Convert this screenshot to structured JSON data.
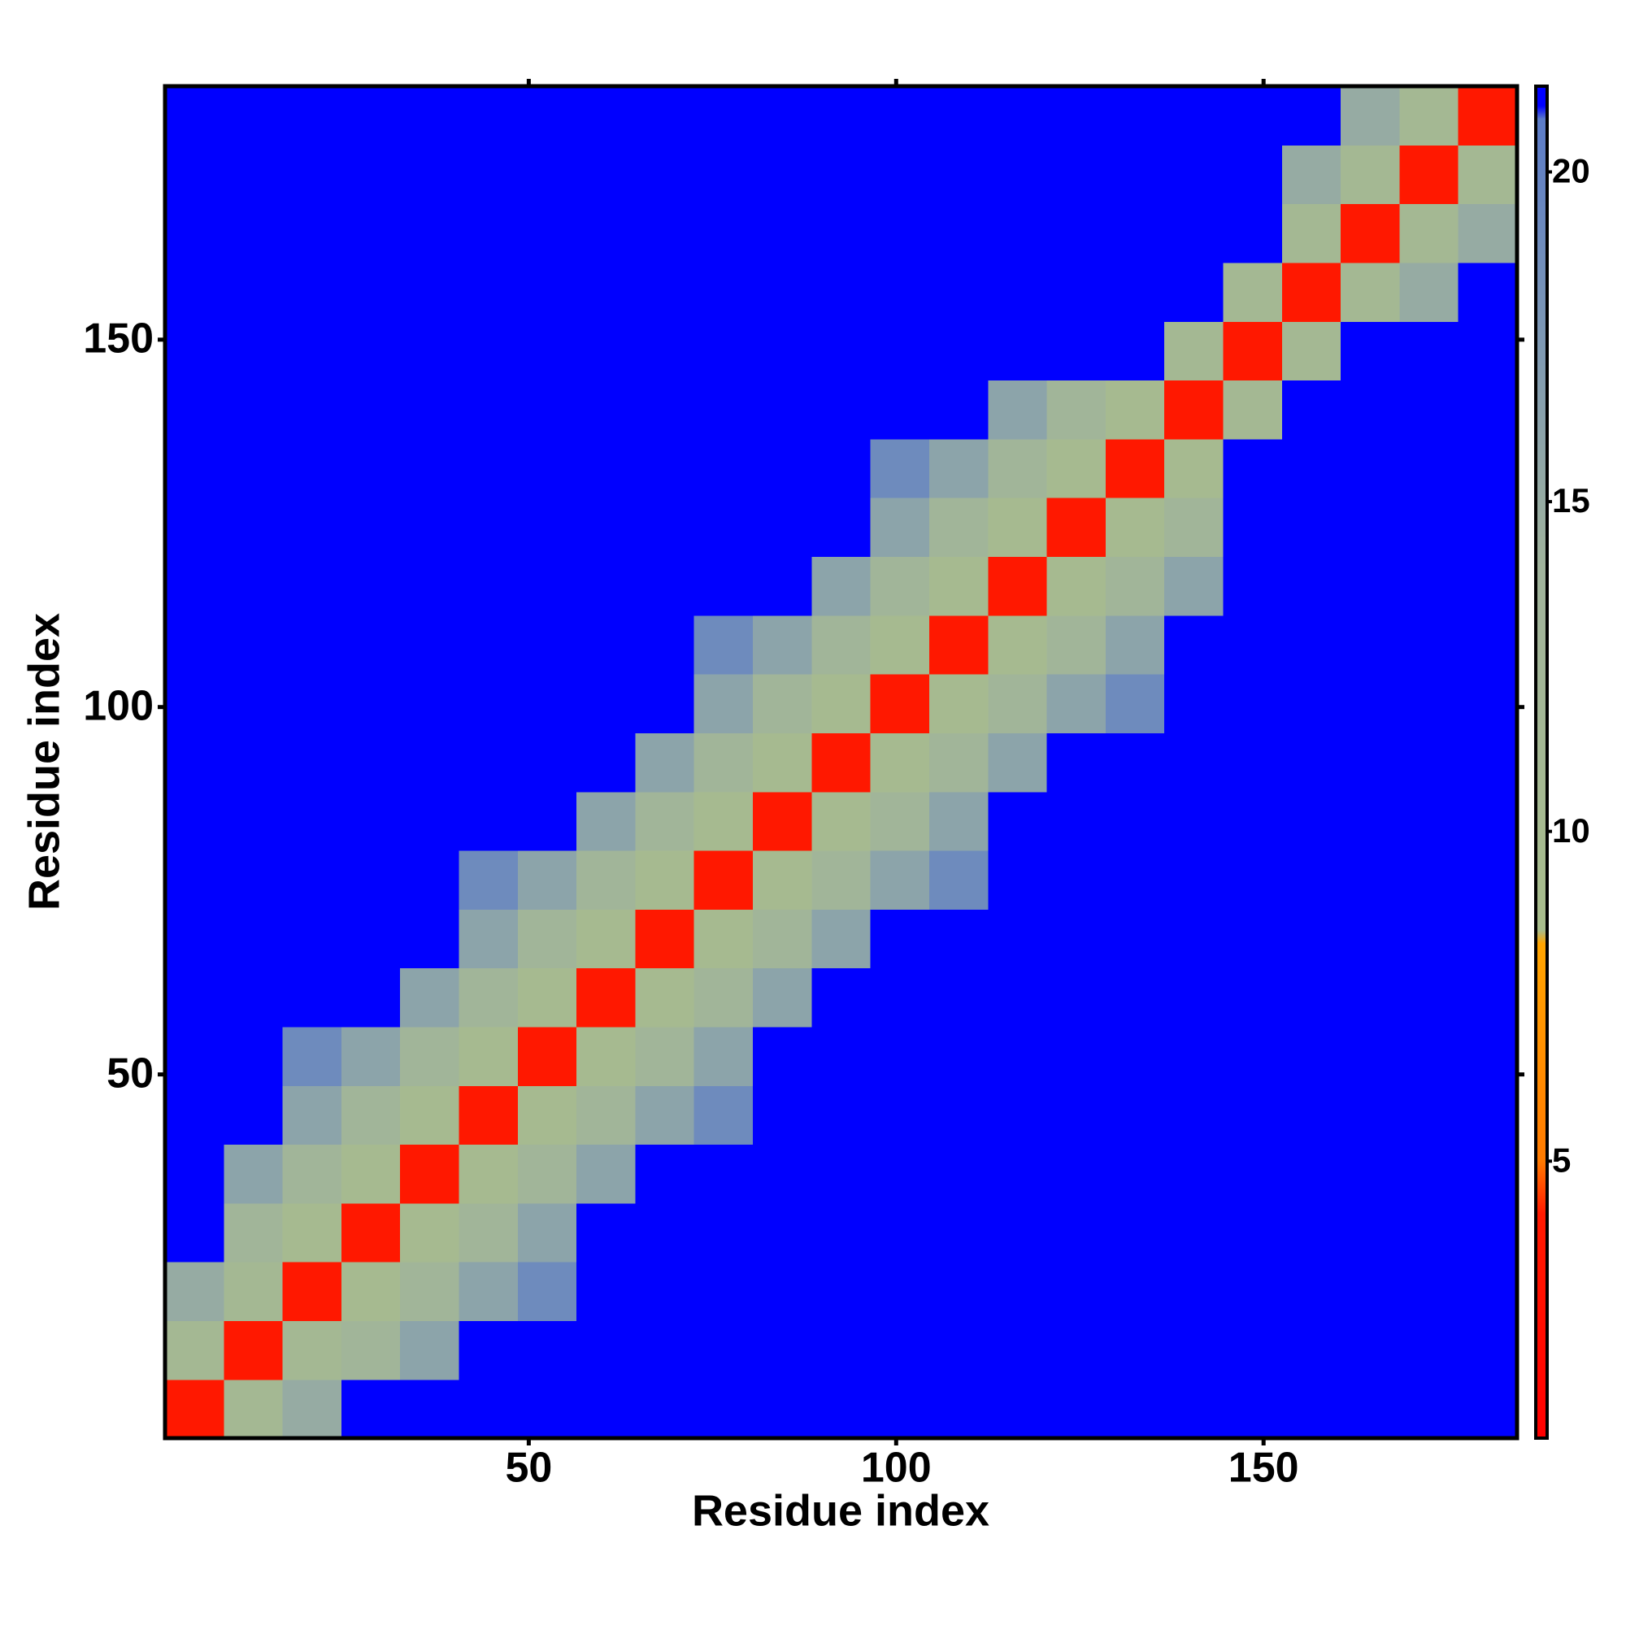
{
  "chart_data": {
    "type": "heatmap",
    "xlabel": "Residue index",
    "ylabel": "Residue index",
    "x": [
      4.5,
      12.5,
      20.5,
      28.5,
      36.5,
      44.5,
      52.5,
      60.5,
      68.5,
      76.5,
      84.5,
      92.5,
      100.5,
      108.5,
      116.5,
      124.5,
      132.5,
      140.5,
      148.5,
      156.5,
      164.5,
      172.5,
      180.5
    ],
    "y": [
      4.5,
      12.5,
      20.5,
      28.5,
      36.5,
      44.5,
      52.5,
      60.5,
      68.5,
      76.5,
      84.5,
      92.5,
      100.5,
      108.5,
      116.5,
      124.5,
      132.5,
      140.5,
      148.5,
      156.5,
      164.5,
      172.5,
      180.5
    ],
    "z": [
      [
        4,
        11,
        15,
        21,
        21,
        21,
        21,
        21,
        21,
        21,
        21,
        21,
        21,
        21,
        21,
        21,
        21,
        21,
        21,
        21,
        21,
        21,
        21
      ],
      [
        11,
        4,
        11,
        13,
        16,
        21,
        21,
        21,
        21,
        21,
        21,
        21,
        21,
        21,
        21,
        21,
        21,
        21,
        21,
        21,
        21,
        21,
        21
      ],
      [
        15,
        11,
        4,
        10,
        13,
        16,
        19,
        21,
        21,
        21,
        21,
        21,
        21,
        21,
        21,
        21,
        21,
        21,
        21,
        21,
        21,
        21,
        21
      ],
      [
        21,
        13,
        10,
        4,
        10,
        13,
        16,
        21,
        21,
        21,
        21,
        21,
        21,
        21,
        21,
        21,
        21,
        21,
        21,
        21,
        21,
        21,
        21
      ],
      [
        21,
        16,
        13,
        10,
        4,
        10,
        13,
        16,
        21,
        21,
        21,
        21,
        21,
        21,
        21,
        21,
        21,
        21,
        21,
        21,
        21,
        21,
        21
      ],
      [
        21,
        21,
        16,
        13,
        10,
        4,
        10,
        13,
        16,
        19,
        21,
        21,
        21,
        21,
        21,
        21,
        21,
        21,
        21,
        21,
        21,
        21,
        21
      ],
      [
        21,
        21,
        19,
        16,
        13,
        10,
        4,
        10,
        13,
        16,
        21,
        21,
        21,
        21,
        21,
        21,
        21,
        21,
        21,
        21,
        21,
        21,
        21
      ],
      [
        21,
        21,
        21,
        21,
        16,
        13,
        10,
        4,
        10,
        13,
        16,
        21,
        21,
        21,
        21,
        21,
        21,
        21,
        21,
        21,
        21,
        21,
        21
      ],
      [
        21,
        21,
        21,
        21,
        21,
        16,
        13,
        10,
        4,
        10,
        13,
        16,
        21,
        21,
        21,
        21,
        21,
        21,
        21,
        21,
        21,
        21,
        21
      ],
      [
        21,
        21,
        21,
        21,
        21,
        19,
        16,
        13,
        10,
        4,
        10,
        13,
        16,
        19,
        21,
        21,
        21,
        21,
        21,
        21,
        21,
        21,
        21
      ],
      [
        21,
        21,
        21,
        21,
        21,
        21,
        21,
        16,
        13,
        10,
        4,
        10,
        13,
        16,
        21,
        21,
        21,
        21,
        21,
        21,
        21,
        21,
        21
      ],
      [
        21,
        21,
        21,
        21,
        21,
        21,
        21,
        21,
        16,
        13,
        10,
        4,
        10,
        13,
        16,
        21,
        21,
        21,
        21,
        21,
        21,
        21,
        21
      ],
      [
        21,
        21,
        21,
        21,
        21,
        21,
        21,
        21,
        21,
        16,
        13,
        10,
        4,
        10,
        13,
        16,
        19,
        21,
        21,
        21,
        21,
        21,
        21
      ],
      [
        21,
        21,
        21,
        21,
        21,
        21,
        21,
        21,
        21,
        19,
        16,
        13,
        10,
        4,
        10,
        13,
        16,
        21,
        21,
        21,
        21,
        21,
        21
      ],
      [
        21,
        21,
        21,
        21,
        21,
        21,
        21,
        21,
        21,
        21,
        21,
        16,
        13,
        10,
        4,
        10,
        13,
        16,
        21,
        21,
        21,
        21,
        21
      ],
      [
        21,
        21,
        21,
        21,
        21,
        21,
        21,
        21,
        21,
        21,
        21,
        21,
        16,
        13,
        10,
        4,
        10,
        13,
        21,
        21,
        21,
        21,
        21
      ],
      [
        21,
        21,
        21,
        21,
        21,
        21,
        21,
        21,
        21,
        21,
        21,
        21,
        19,
        16,
        13,
        10,
        4,
        10,
        21,
        21,
        21,
        21,
        21
      ],
      [
        21,
        21,
        21,
        21,
        21,
        21,
        21,
        21,
        21,
        21,
        21,
        21,
        21,
        21,
        16,
        13,
        10,
        4,
        11,
        21,
        21,
        21,
        21
      ],
      [
        21,
        21,
        21,
        21,
        21,
        21,
        21,
        21,
        21,
        21,
        21,
        21,
        21,
        21,
        21,
        21,
        21,
        11,
        4,
        11,
        21,
        21,
        21
      ],
      [
        21,
        21,
        21,
        21,
        21,
        21,
        21,
        21,
        21,
        21,
        21,
        21,
        21,
        21,
        21,
        21,
        21,
        21,
        11,
        4,
        11,
        15,
        21
      ],
      [
        21,
        21,
        21,
        21,
        21,
        21,
        21,
        21,
        21,
        21,
        21,
        21,
        21,
        21,
        21,
        21,
        21,
        21,
        21,
        11,
        4,
        11,
        15
      ],
      [
        21,
        21,
        21,
        21,
        21,
        21,
        21,
        21,
        21,
        21,
        21,
        21,
        21,
        21,
        21,
        21,
        21,
        21,
        21,
        15,
        11,
        4,
        11
      ],
      [
        21,
        21,
        21,
        21,
        21,
        21,
        21,
        21,
        21,
        21,
        21,
        21,
        21,
        21,
        21,
        21,
        21,
        21,
        21,
        21,
        15,
        11,
        4
      ]
    ],
    "xlim": [
      0.5,
      184.5
    ],
    "ylim": [
      0.5,
      184.5
    ],
    "xticks": [
      50,
      100,
      150
    ],
    "yticks": [
      50,
      100,
      150
    ],
    "clim": [
      0.8,
      21.3
    ],
    "cticks": [
      5,
      10,
      15,
      20
    ],
    "colorscale": [
      [
        0.8,
        "#ff0000"
      ],
      [
        4.2,
        "#ff1a00"
      ],
      [
        5,
        "#ff7a00"
      ],
      [
        8.3,
        "#ffa500"
      ],
      [
        8.5,
        "#a8bd8c"
      ],
      [
        14,
        "#a0b39c"
      ],
      [
        17.5,
        "#7d98b4"
      ],
      [
        20.8,
        "#5c7cc8"
      ],
      [
        21,
        "#0000ff"
      ],
      [
        21.3,
        "#0000ff"
      ]
    ]
  }
}
